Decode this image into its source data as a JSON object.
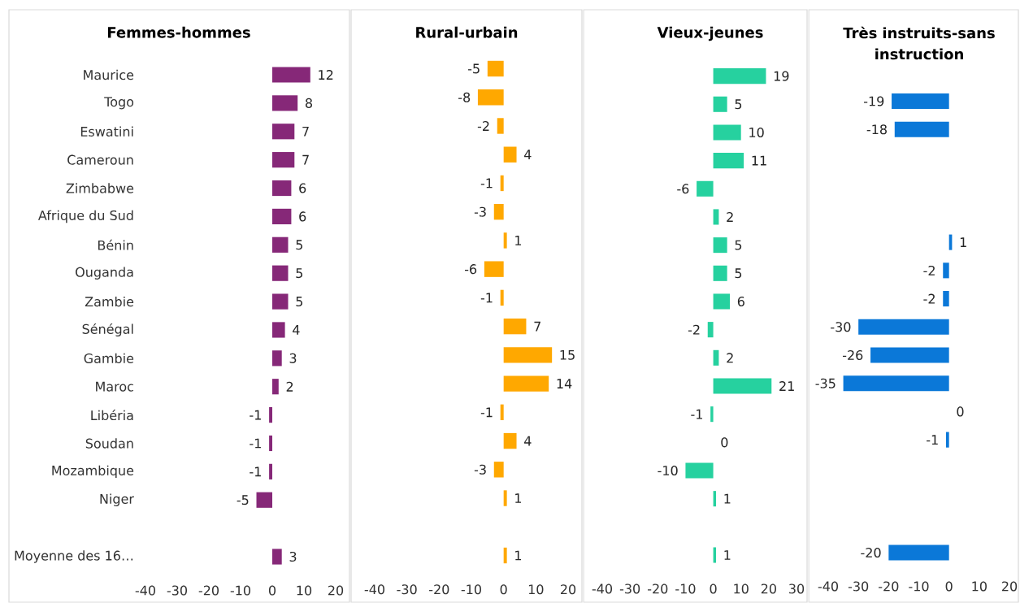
{
  "chart_data": [
    {
      "type": "bar",
      "orientation": "horizontal",
      "title": "Femmes-hommes",
      "categories": [
        "Maurice",
        "Togo",
        "Eswatini",
        "Cameroun",
        "Zimbabwe",
        "Afrique du Sud",
        "Bénin",
        "Ouganda",
        "Zambie",
        "Sénégal",
        "Gambie",
        "Maroc",
        "Libéria",
        "Soudan",
        "Mozambique",
        "Niger",
        null,
        "Moyenne des 16…"
      ],
      "values": [
        12,
        8,
        7,
        7,
        6,
        6,
        5,
        5,
        5,
        4,
        3,
        2,
        -1,
        -1,
        -1,
        -5,
        null,
        3
      ],
      "color": "#862878",
      "xlim": [
        -40,
        20
      ],
      "xticks": [
        -40,
        -30,
        -20,
        -10,
        0,
        10,
        20
      ],
      "data_labels": true
    },
    {
      "type": "bar",
      "orientation": "horizontal",
      "title": "Rural-urbain",
      "categories": [
        null,
        null,
        null,
        null,
        null,
        null,
        null,
        null,
        null,
        null,
        null,
        null,
        null,
        null,
        null,
        null,
        null,
        null
      ],
      "values": [
        -5,
        -8,
        -2,
        4,
        -1,
        -3,
        1,
        -6,
        -1,
        7,
        15,
        14,
        -1,
        4,
        -3,
        1,
        null,
        1
      ],
      "color": "#ffa800",
      "xlim": [
        -40,
        20
      ],
      "xticks": [
        -40,
        -30,
        -20,
        -10,
        0,
        10,
        20
      ],
      "data_labels": true,
      "tick_labels": "x"
    },
    {
      "type": "bar",
      "orientation": "horizontal",
      "title": "Vieux-jeunes",
      "categories": [
        null,
        null,
        null,
        null,
        null,
        null,
        null,
        null,
        null,
        null,
        null,
        null,
        null,
        null,
        null,
        null,
        null,
        null
      ],
      "values": [
        19,
        5,
        10,
        11,
        -6,
        2,
        5,
        5,
        6,
        -2,
        2,
        21,
        -1,
        0,
        -10,
        1,
        null,
        1
      ],
      "color": "#26d19f",
      "xlim": [
        -40,
        30
      ],
      "xticks": [
        -40,
        -30,
        -20,
        -10,
        0,
        10,
        20,
        30
      ],
      "data_labels": true,
      "tick_labels": "x"
    },
    {
      "type": "bar",
      "orientation": "horizontal",
      "title": "Très instruits-sans instruction",
      "categories": [
        null,
        null,
        null,
        null,
        null,
        null,
        null,
        null,
        null,
        null,
        null,
        null,
        null,
        null,
        null,
        null,
        null,
        null
      ],
      "values": [
        null,
        -19,
        -18,
        null,
        null,
        null,
        1,
        -2,
        -2,
        -30,
        -26,
        -35,
        0,
        -1,
        null,
        null,
        null,
        -20
      ],
      "color": "#0b78d8",
      "xlim": [
        -40,
        20
      ],
      "xticks": [
        -40,
        -30,
        -20,
        -10,
        0,
        10,
        20
      ],
      "data_labels": true,
      "tick_labels": "x"
    }
  ]
}
